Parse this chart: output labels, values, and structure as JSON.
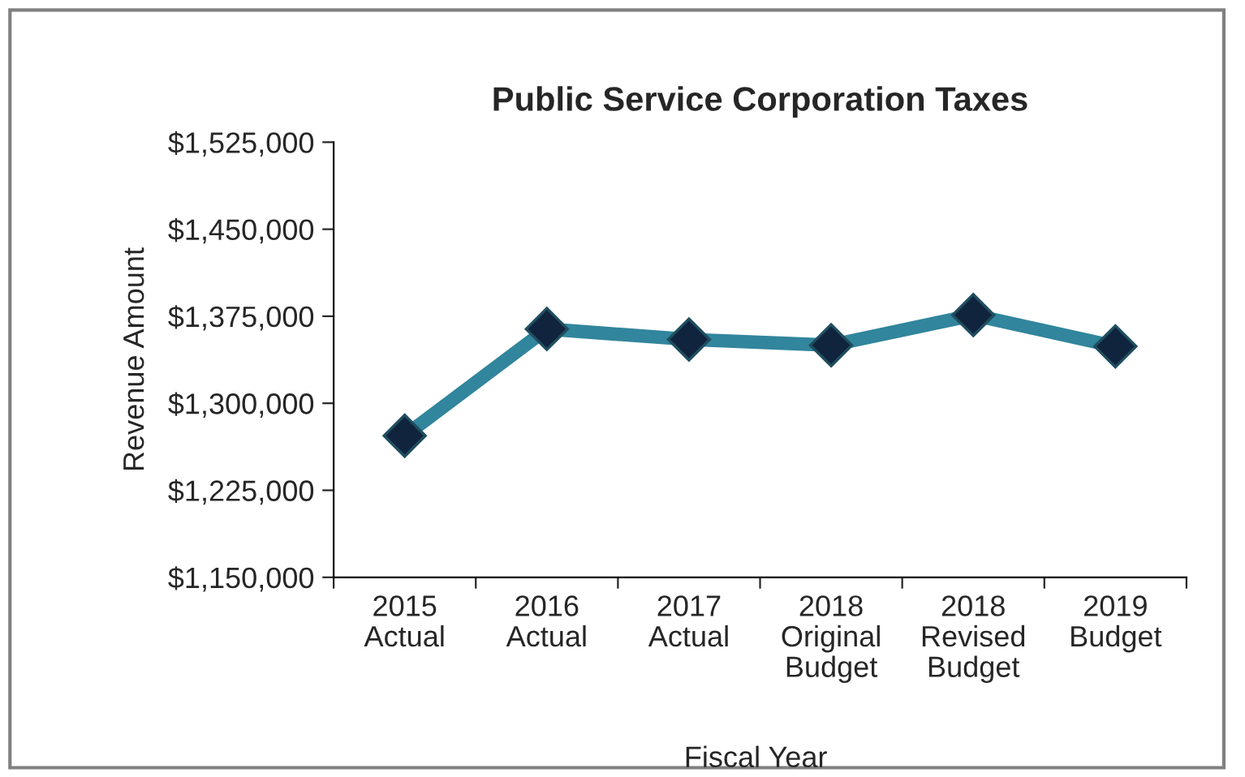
{
  "chart_data": {
    "type": "line",
    "title": "Public Service Corporation Taxes",
    "xlabel": "Fiscal Year",
    "ylabel": "Revenue Amount",
    "categories": [
      "2015\nActual",
      "2016\nActual",
      "2017\nActual",
      "2018\nOriginal\nBudget",
      "2018\nRevised\nBudget",
      "2019\nBudget"
    ],
    "series": [
      {
        "color": "#31859c",
        "values": [
          1272000,
          1364000,
          1355000,
          1350000,
          1376000,
          1349000
        ]
      }
    ],
    "marker": "diamond",
    "line_style": "solid",
    "ylim": [
      1150000,
      1525000
    ],
    "yticks": [
      {
        "value": 1150000,
        "label": "$1,150,000"
      },
      {
        "value": 1225000,
        "label": "$1,225,000"
      },
      {
        "value": 1300000,
        "label": "$1,300,000"
      },
      {
        "value": 1375000,
        "label": "$1,375,000"
      },
      {
        "value": 1450000,
        "label": "$1,450,000"
      },
      {
        "value": 1525000,
        "label": "$1,525,000"
      }
    ],
    "grid": false,
    "legend": false
  }
}
